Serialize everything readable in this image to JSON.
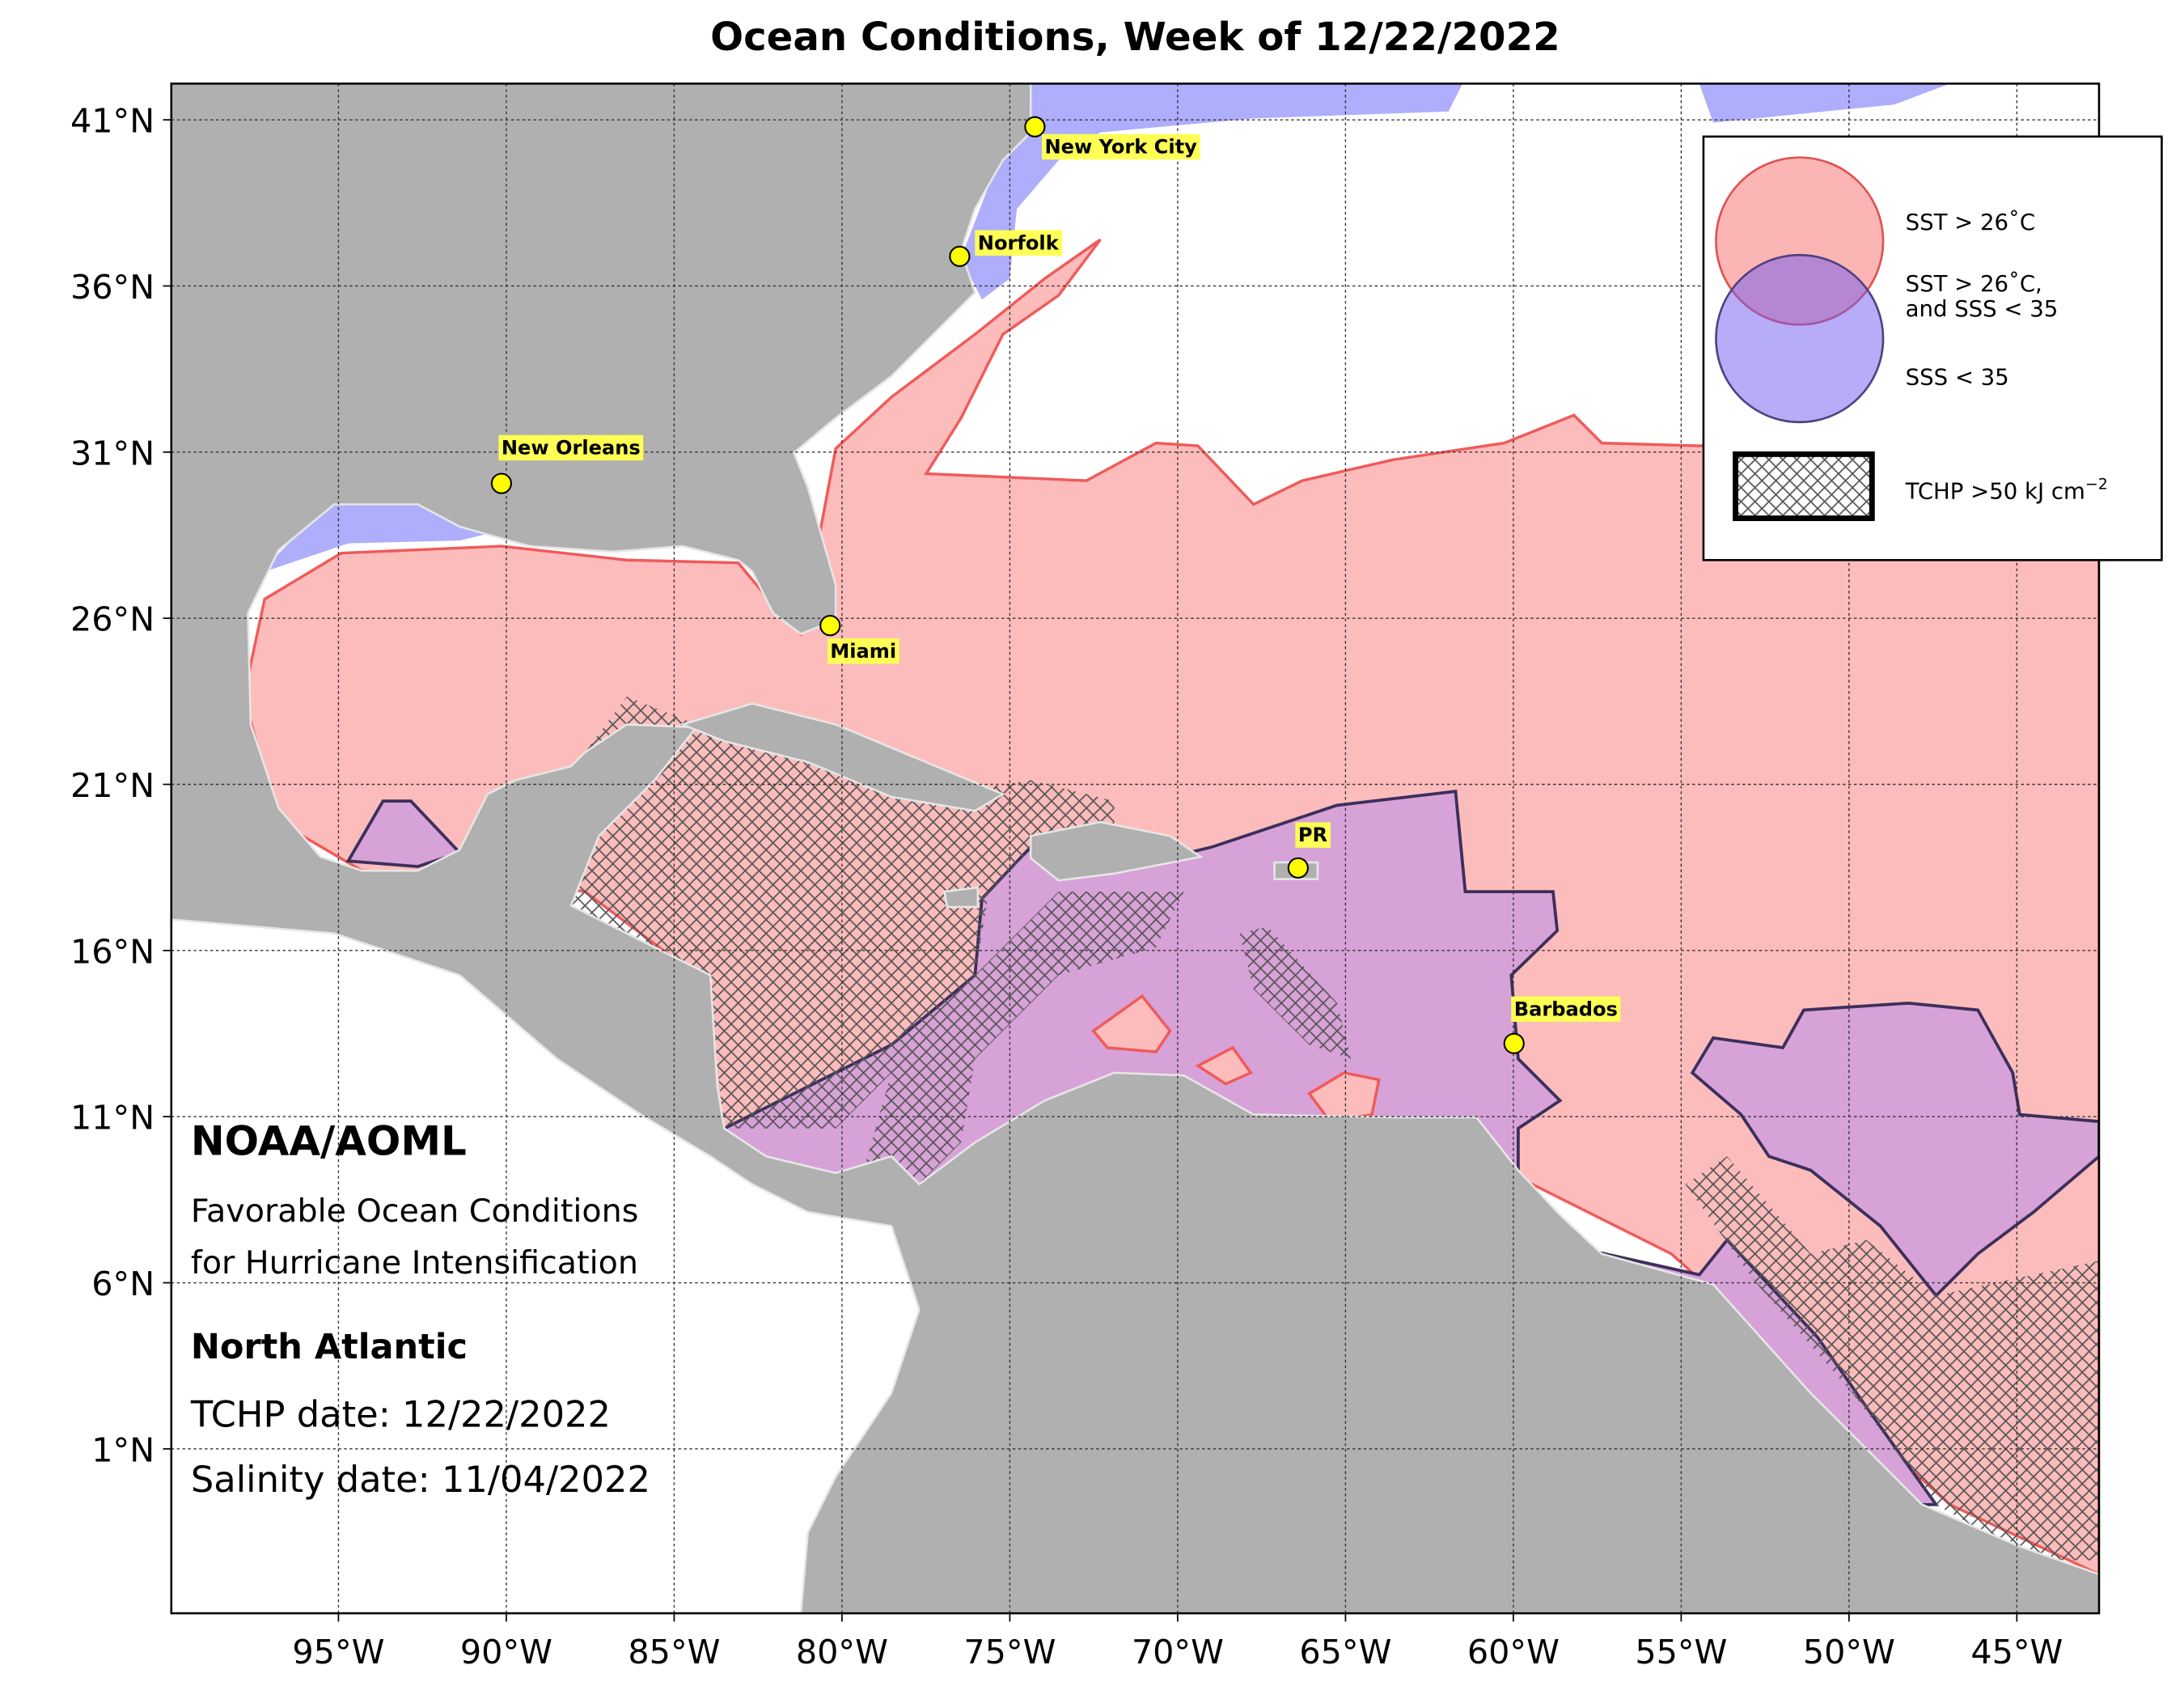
{
  "title": "Ocean Conditions, Week of 12/22/2022",
  "axes": {
    "lat_labels": [
      "41°N",
      "36°N",
      "31°N",
      "26°N",
      "21°N",
      "16°N",
      "11°N",
      "6°N",
      "1°N"
    ],
    "lon_labels": [
      "95°W",
      "90°W",
      "85°W",
      "80°W",
      "75°W",
      "70°W",
      "65°W",
      "60°W",
      "55°W",
      "50°W",
      "45°W"
    ]
  },
  "cities": [
    "New York City",
    "Norfolk",
    "New Orleans",
    "Miami",
    "PR",
    "Barbados"
  ],
  "legend": {
    "sst": "SST > 26˚C",
    "both": [
      "SST > 26˚C,",
      "and SSS < 35"
    ],
    "sss": "SSS < 35",
    "tchp": {
      "text": "TCHP >50 kJ cm",
      "superscript": "−2"
    }
  },
  "info": {
    "org": "NOAA/AOML",
    "subtitle": [
      "Favorable Ocean Conditions",
      "for Hurricane Intensification"
    ],
    "region": "North Atlantic",
    "tchp_date": "TCHP date: 12/22/2022",
    "salinity_date": "Salinity date: 11/04/2022"
  }
}
